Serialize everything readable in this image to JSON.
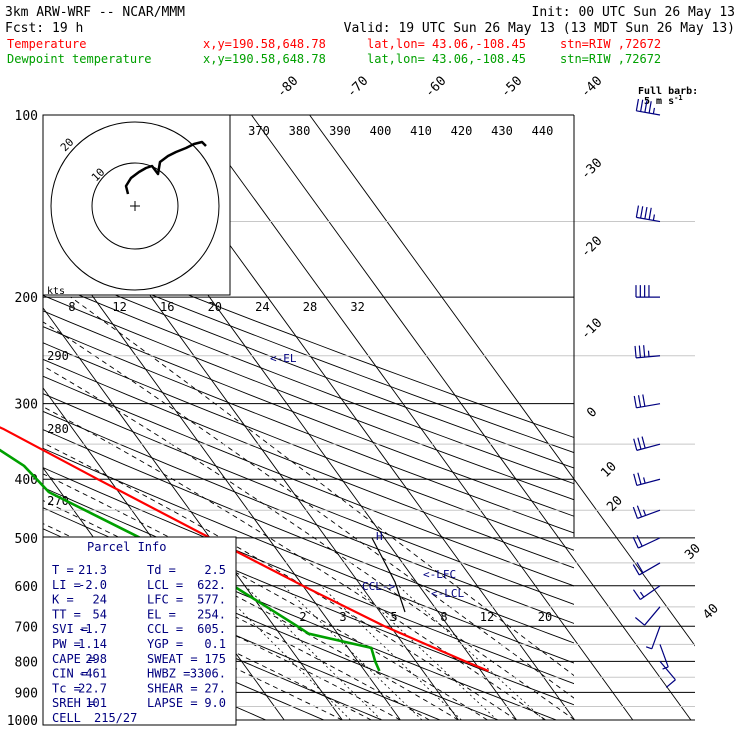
{
  "header": {
    "model": "3km ARW-WRF -- NCAR/MMM",
    "init": "Init: 00 UTC Sun 26 May 13",
    "fcst_label": "Fcst:",
    "fcst_value": "19 h",
    "valid": "Valid: 19 UTC Sun 26 May 13 (13 MDT Sun 26 May 13)",
    "rows": [
      {
        "name": "Temperature",
        "xy": "x,y=190.58,648.78",
        "latlon": "lat,lon= 43.06,-108.45",
        "stn": "stn=RIW ,72672",
        "color": "#ff0000"
      },
      {
        "name": "Dewpoint temperature",
        "xy": "x,y=190.58,648.78",
        "latlon": "lat,lon= 43.06,-108.45",
        "stn": "stn=RIW ,72672",
        "color": "#00a000"
      }
    ]
  },
  "barb_legend": {
    "line1": "Full barb:",
    "line2": "5 m s",
    "exponent": "-1"
  },
  "hodograph": {
    "units": "kts",
    "ring_labels": [
      "10",
      "20"
    ]
  },
  "parcel_info": {
    "title": "Parcel Info",
    "rows": [
      [
        {
          "k": "T",
          "v": "21.3"
        },
        {
          "k": "Td",
          "v": "2.5"
        }
      ],
      [
        {
          "k": "LI",
          "v": "-2.0"
        },
        {
          "k": "LCL",
          "v": "622."
        }
      ],
      [
        {
          "k": "K",
          "v": "24"
        },
        {
          "k": "LFC",
          "v": "577."
        }
      ],
      [
        {
          "k": "TT",
          "v": "54"
        },
        {
          "k": "EL",
          "v": "254."
        }
      ],
      [
        {
          "k": "SVI",
          "v": "-1.7"
        },
        {
          "k": "CCL",
          "v": "605."
        }
      ],
      [
        {
          "k": "PW",
          "v": "1.14"
        },
        {
          "k": "YGP",
          "v": "0.1"
        }
      ],
      [
        {
          "k": "CAPE",
          "v": "298"
        },
        {
          "k": "SWEAT",
          "v": "175"
        }
      ],
      [
        {
          "k": "CIN",
          "v": "-461"
        },
        {
          "k": "HWBZ",
          "v": "3306."
        }
      ],
      [
        {
          "k": "Tc",
          "v": "22.7"
        },
        {
          "k": "SHEAR",
          "v": "27."
        }
      ],
      [
        {
          "k": "SREH",
          "v": "101"
        },
        {
          "k": "LAPSE",
          "v": "9.0"
        }
      ],
      [
        {
          "k": "CELL",
          "v": "215/27"
        }
      ]
    ]
  },
  "level_labels": {
    "el": "<-EL",
    "lfc": "<-LFC",
    "lcl": "<-LCL",
    "ccl": "CCL->",
    "wind_marker": "H"
  },
  "chart_data": {
    "type": "line",
    "title": "",
    "ylabel": "",
    "xlabel": "",
    "y_scale": "log",
    "ylim": [
      100,
      1000
    ],
    "pressure_ticks": [
      100,
      200,
      300,
      400,
      500,
      600,
      700,
      800,
      900,
      1000
    ],
    "isotherm_labels": [
      -80,
      -70,
      -60,
      -50,
      -40,
      -30,
      -20,
      -10,
      0,
      10,
      20,
      30,
      40
    ],
    "theta_labels_top": [
      370,
      380,
      390,
      400,
      410,
      420,
      430,
      440
    ],
    "theta_labels_mid": [
      290,
      280,
      270
    ],
    "mixing_ratio_labels": [
      2,
      3,
      5,
      8,
      12,
      20
    ],
    "hodo_axis_labels": [
      8,
      12,
      16,
      20,
      24,
      28,
      32
    ],
    "series": [
      {
        "name": "Temperature",
        "color": "#ff0000",
        "p": [
          830,
          800,
          700,
          600,
          500,
          400,
          330,
          290,
          255,
          210,
          180,
          150,
          120,
          100
        ],
        "t": [
          21.3,
          18.5,
          9.0,
          0.0,
          -10.0,
          -22.0,
          -32.0,
          -41.0,
          -49.0,
          -51.0,
          -50.0,
          -47.0,
          -45.0,
          -44.0
        ]
      },
      {
        "name": "Dewpoint temperature",
        "color": "#00a000",
        "p": [
          830,
          800,
          760,
          720,
          700,
          600,
          500,
          420,
          380,
          350,
          300,
          260,
          240,
          200,
          150,
          100
        ],
        "t": [
          2.5,
          3.0,
          4.0,
          -5.0,
          -6.0,
          -12.0,
          -22.0,
          -32.0,
          -33.0,
          -36.0,
          -45.0,
          -53.0,
          -57.0,
          -62.0,
          -70.0,
          -80.0
        ]
      }
    ],
    "wind_barbs": [
      {
        "p": 100,
        "dir": 280,
        "spd": 45
      },
      {
        "p": 150,
        "dir": 280,
        "spd": 45
      },
      {
        "p": 200,
        "dir": 270,
        "spd": 40
      },
      {
        "p": 250,
        "dir": 265,
        "spd": 35
      },
      {
        "p": 300,
        "dir": 260,
        "spd": 30
      },
      {
        "p": 350,
        "dir": 255,
        "spd": 30
      },
      {
        "p": 400,
        "dir": 255,
        "spd": 25
      },
      {
        "p": 450,
        "dir": 250,
        "spd": 25
      },
      {
        "p": 500,
        "dir": 245,
        "spd": 20
      },
      {
        "p": 550,
        "dir": 240,
        "spd": 20
      },
      {
        "p": 600,
        "dir": 235,
        "spd": 15
      },
      {
        "p": 650,
        "dir": 220,
        "spd": 10
      },
      {
        "p": 700,
        "dir": 200,
        "spd": 5
      },
      {
        "p": 750,
        "dir": 160,
        "spd": 5
      },
      {
        "p": 800,
        "dir": 140,
        "spd": 10
      }
    ]
  }
}
